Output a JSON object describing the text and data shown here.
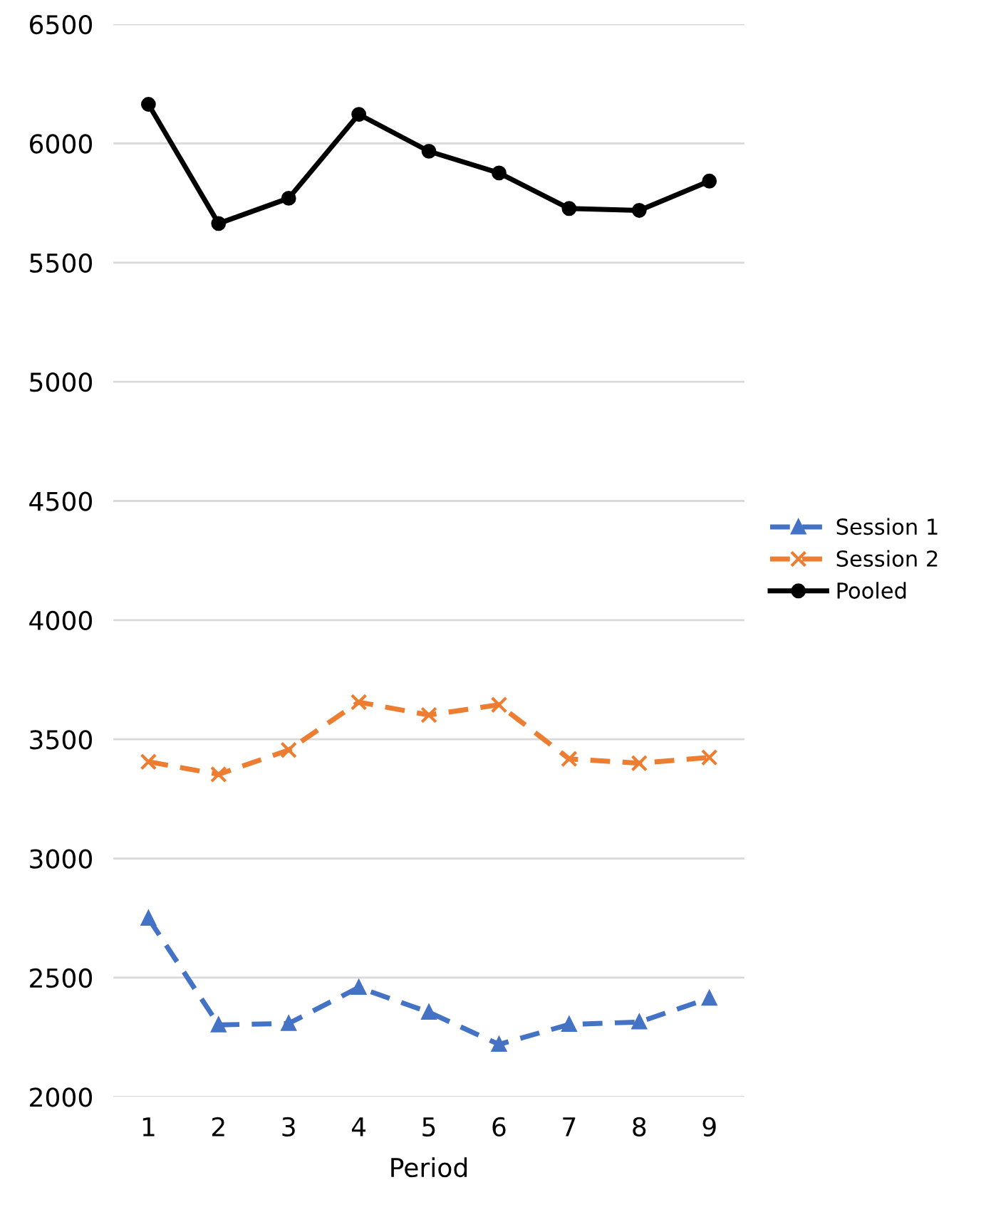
{
  "chart_data": {
    "type": "line",
    "xlabel": "Period",
    "categories": [
      "1",
      "2",
      "3",
      "4",
      "5",
      "6",
      "7",
      "8",
      "9"
    ],
    "ylim": [
      2000,
      6500
    ],
    "yticks": [
      2000,
      2500,
      3000,
      3500,
      4000,
      4500,
      5000,
      5500,
      6000,
      6500
    ],
    "grid": "y",
    "legend": "right",
    "series": [
      {
        "name": "Session 1",
        "color": "#4472c4",
        "marker": "triangle",
        "line_style": "dashed",
        "values": [
          2749,
          2302,
          2308,
          2459,
          2355,
          2220,
          2304,
          2314,
          2414
        ]
      },
      {
        "name": "Session 2",
        "color": "#ed7d31",
        "marker": "cross",
        "line_style": "dashed",
        "values": [
          3406,
          3353,
          3455,
          3656,
          3602,
          3645,
          3418,
          3400,
          3424
        ]
      },
      {
        "name": "Pooled",
        "color": "#000000",
        "marker": "circle",
        "line_style": "solid",
        "values": [
          6164,
          5664,
          5770,
          6122,
          5967,
          5876,
          5727,
          5719,
          5842
        ]
      }
    ]
  }
}
